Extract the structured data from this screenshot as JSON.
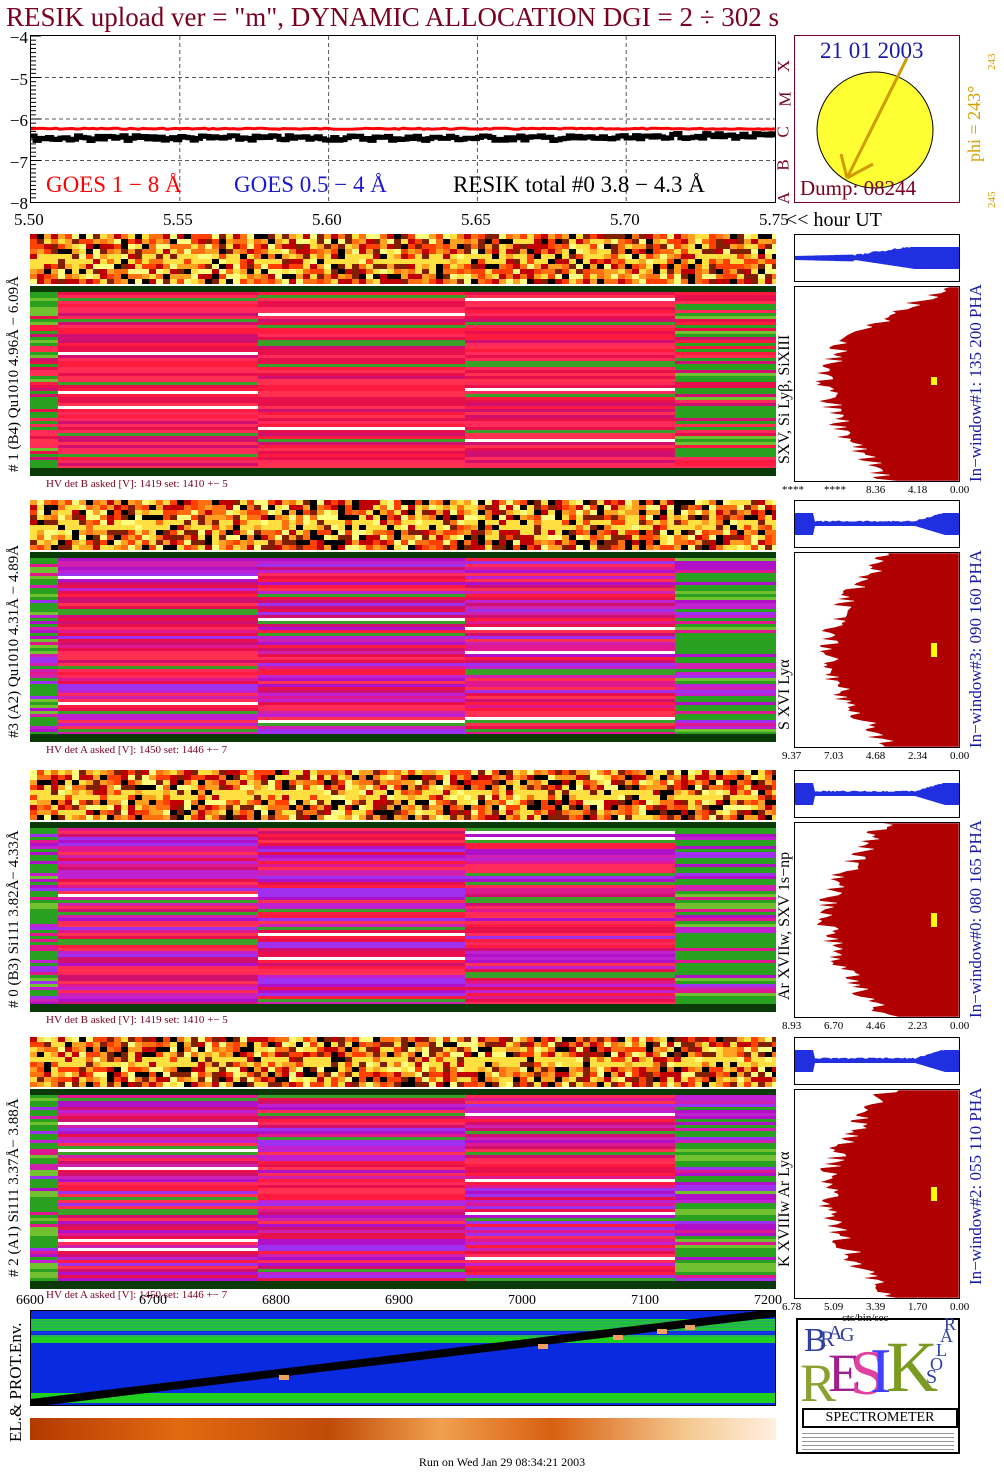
{
  "header": {
    "title": "RESIK upload ver = \"m\", DYNAMIC ALLOCATION  DGI =   2 ÷ 302 s"
  },
  "goes_panel": {
    "y_ticks": [
      "−4",
      "−5",
      "−6",
      "−7",
      "−8"
    ],
    "legend": {
      "goes_long": "GOES 1 − 8 Å",
      "goes_short": "GOES 0.5 − 4 Å",
      "resik_total": "RESIK total #0  3.8 − 4.3 Å"
    },
    "colors": {
      "goes_long": "#ff0000",
      "goes_short": "#0000cc",
      "resik": "#000000"
    },
    "class_labels": [
      "A",
      "B",
      "C",
      "M",
      "X"
    ]
  },
  "time_axis": {
    "ticks": [
      "5.50",
      "5.55",
      "5.60",
      "5.65",
      "5.70",
      "5.75"
    ],
    "unit": "<< hour UT"
  },
  "sun_panel": {
    "date": "21 01 2003",
    "dump": "Dump: 08244",
    "phi_label": "phi = 243°",
    "phi_small": "243",
    "side_small": "245"
  },
  "channels": [
    {
      "left_label": "# 1 (B4) Qu1010 4.96Å − 6.09Å",
      "line_label": "SXV, Si Lyβ, SiXIII",
      "window_label": "In−window#1:  135 200 PHA",
      "hv": "HV det B asked [V]:  1419 set:  1410  +−   5",
      "pha_ticks": [
        "****",
        "****",
        "8.36",
        "4.18",
        "0.00"
      ]
    },
    {
      "left_label": "#3 (A2) Qu1010  4.31Å − 4.89Å",
      "line_label": "S XVI Lyα",
      "window_label": "In−window#3:  090 160 PHA",
      "hv": "HV det A asked [V]:  1450 set:  1446  +−   7",
      "pha_ticks": [
        "9.37",
        "7.03",
        "4.68",
        "2.34",
        "0.00"
      ]
    },
    {
      "left_label": "# 0 (B3) Si111  3.82Å− 4.33Å",
      "line_label": "Ar XVIIw,  SXV 1s−np",
      "window_label": "In−window#0:  080 165 PHA",
      "hv": "HV det B asked [V]:  1419 set:  1410  +−   5",
      "pha_ticks": [
        "8.93",
        "6.70",
        "4.46",
        "2.23",
        "0.00"
      ]
    },
    {
      "left_label": "# 2 (A1) Si111  3.37Å− 3.88Å",
      "line_label": "K XVIIIw  Ar Lyα",
      "window_label": "In−window#2:  055 110 PHA",
      "hv": "HV det A asked [V]:  1450 set:  1446  +−   7",
      "pha_ticks": [
        "6.78",
        "5.09",
        "3.39",
        "1.70",
        "0.00"
      ]
    }
  ],
  "pha_unit": "cts/bin/sec",
  "orbit_axis": {
    "ticks": [
      "6600",
      "6700",
      "6800",
      "6900",
      "7000",
      "7100",
      "7200"
    ]
  },
  "env_label": "EL.& PROT.Env.",
  "logo": {
    "letters": [
      "B",
      "R",
      "A",
      "G",
      "R",
      "E",
      "S",
      "I",
      "K",
      "S",
      "O",
      "L",
      "A",
      "R"
    ],
    "banner": "SPECTROMETER"
  },
  "footer": "Run on Wed Jan 29 08:34:21 2003",
  "chart_data": [
    {
      "type": "line",
      "title": "",
      "series": [
        {
          "name": "GOES 1 − 8 Å",
          "values": [
            -6.22,
            -6.22,
            -6.23,
            -6.22,
            -6.22,
            -6.23
          ]
        },
        {
          "name": "RESIK total #0  3.8 − 4.3 Å",
          "values": [
            -6.4,
            -6.45,
            -6.42,
            -6.43,
            -6.41,
            -6.38
          ]
        }
      ],
      "x": [
        5.5,
        5.55,
        5.6,
        5.65,
        5.7,
        5.75
      ],
      "xlim": [
        5.5,
        5.75
      ],
      "ylim": [
        -8,
        -4
      ],
      "xlabel": "<< hour UT",
      "grid": true
    }
  ]
}
